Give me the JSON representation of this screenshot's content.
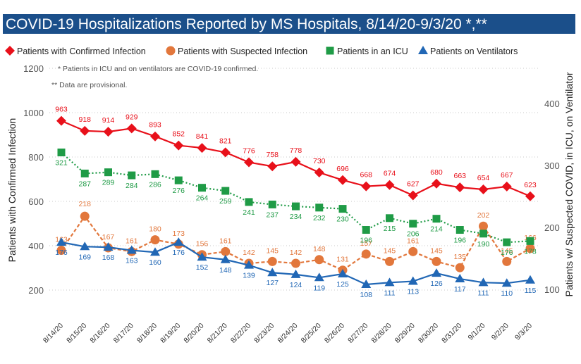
{
  "title": "COVID-19 Hospitalizations Reported by MS Hospitals, 8/14/20-9/3/20 *,**",
  "chart_data": {
    "type": "line",
    "title": "COVID-19 Hospitalizations Reported by MS Hospitals, 8/14/20-9/3/20 *,**",
    "categories": [
      "8/14/20",
      "8/15/20",
      "8/16/20",
      "8/17/20",
      "8/18/20",
      "8/19/20",
      "8/20/20",
      "8/21/20",
      "8/22/20",
      "8/23/20",
      "8/24/20",
      "8/25/20",
      "8/26/20",
      "8/27/20",
      "8/28/20",
      "8/29/20",
      "8/30/20",
      "8/31/20",
      "9/1/20",
      "9/2/20",
      "9/3/20"
    ],
    "ylabel": "Patients with Confirmed Infection",
    "y2label": "Patients w/ Suspected COVID, in ICU, on Ventilator",
    "ylim": [
      200,
      1200
    ],
    "yticks": [
      200,
      400,
      600,
      800,
      1000,
      1200
    ],
    "y2lim": [
      100,
      450
    ],
    "y2ticks": [
      100,
      200,
      300,
      400
    ],
    "notes": [
      "* Patients in ICU and on ventilators are COVID-19 confirmed.",
      "** Data are provisional."
    ],
    "legend_position": "top",
    "series": [
      {
        "name": "Patients with Confirmed Infection",
        "axis": "left",
        "marker": "diamond",
        "line": "solid",
        "color": "#e8101a",
        "values": [
          963,
          918,
          914,
          929,
          893,
          852,
          841,
          821,
          776,
          758,
          778,
          730,
          696,
          668,
          674,
          627,
          680,
          663,
          654,
          667,
          623
        ]
      },
      {
        "name": "Patients with Suspected Infection",
        "axis": "right",
        "marker": "circle",
        "line": "dashed",
        "color": "#e2773c",
        "values": [
          163,
          218,
          167,
          161,
          180,
          173,
          156,
          161,
          142,
          145,
          142,
          148,
          131,
          157,
          145,
          161,
          145,
          135,
          202,
          145,
          166
        ]
      },
      {
        "name": "Patients in an ICU",
        "axis": "right",
        "marker": "square",
        "line": "dotted",
        "color": "#1f9b46",
        "values": [
          321,
          287,
          289,
          284,
          286,
          276,
          264,
          259,
          241,
          237,
          234,
          232,
          230,
          196,
          215,
          206,
          214,
          196,
          190,
          176,
          178
        ]
      },
      {
        "name": "Patients on Ventilators",
        "axis": "right",
        "marker": "triangle",
        "line": "solid",
        "color": "#2167b5",
        "values": [
          176,
          169,
          168,
          163,
          160,
          176,
          152,
          148,
          139,
          127,
          124,
          119,
          125,
          108,
          111,
          113,
          126,
          117,
          111,
          110,
          115
        ]
      }
    ]
  }
}
